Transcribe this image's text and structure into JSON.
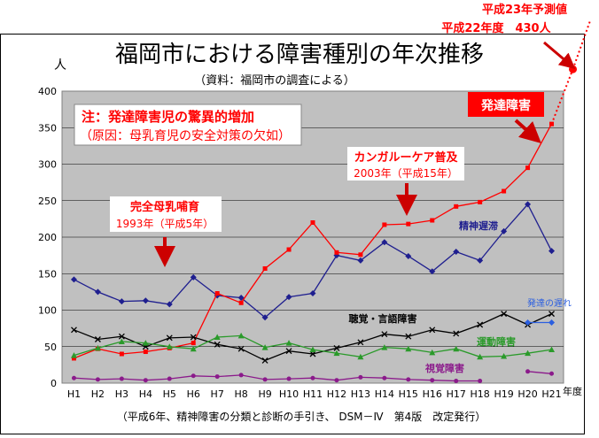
{
  "chart_data": {
    "type": "line",
    "title": "福岡市における障害種別の年次推移",
    "subtitle": "（資料：福岡市の調査による）",
    "ylabel": "人",
    "xlabel": "年度",
    "footnote": "（平成6年、精神障害の分類と診断の手引き、 DSM－Ⅳ　第4版　改定発行）",
    "ylim": [
      0,
      400
    ],
    "yticks": [
      "0",
      "50",
      "100",
      "150",
      "200",
      "250",
      "300",
      "350",
      "400"
    ],
    "categories": [
      "H1",
      "H2",
      "H3",
      "H4",
      "H5",
      "H6",
      "H7",
      "H8",
      "H9",
      "H10",
      "H11",
      "H12",
      "H13",
      "H14",
      "H15",
      "H16",
      "H17",
      "H18",
      "H19",
      "H20",
      "H21"
    ],
    "series": [
      {
        "name": "精神遅滞",
        "color": "#1f1f8f",
        "marker": "diamond",
        "values": [
          142,
          125,
          112,
          113,
          108,
          145,
          120,
          117,
          90,
          118,
          123,
          175,
          168,
          193,
          174,
          153,
          180,
          168,
          208,
          245,
          181
        ]
      },
      {
        "name": "発達障害",
        "color": "#ff0000",
        "marker": "square",
        "values": [
          34,
          47,
          40,
          43,
          48,
          55,
          123,
          110,
          157,
          183,
          220,
          179,
          176,
          217,
          218,
          223,
          242,
          248,
          263,
          295,
          355
        ]
      },
      {
        "name": "聴覚・言語障害",
        "color": "#000000",
        "marker": "x",
        "values": [
          73,
          60,
          64,
          50,
          62,
          63,
          53,
          47,
          31,
          44,
          40,
          48,
          56,
          67,
          64,
          73,
          68,
          80,
          95,
          80,
          95
        ]
      },
      {
        "name": "運動障害",
        "color": "#2a9a2a",
        "marker": "triangle",
        "values": [
          38,
          48,
          57,
          55,
          50,
          47,
          63,
          65,
          49,
          55,
          46,
          41,
          36,
          49,
          47,
          42,
          47,
          36,
          37,
          41,
          46
        ]
      },
      {
        "name": "視覚障害",
        "color": "#8b1a8b",
        "marker": "circle",
        "values": [
          7,
          5,
          6,
          4,
          6,
          10,
          9,
          11,
          5,
          6,
          7,
          4,
          8,
          7,
          5,
          4,
          3,
          3,
          null,
          16,
          13
        ]
      },
      {
        "name": "発達の遅れ",
        "color": "#2b5fe0",
        "marker": "diamond",
        "values": [
          null,
          null,
          null,
          null,
          null,
          null,
          null,
          null,
          null,
          null,
          null,
          null,
          null,
          null,
          null,
          null,
          null,
          null,
          null,
          83,
          83
        ]
      }
    ],
    "prediction": {
      "label": "平成23年予測値",
      "value": 430,
      "note": "平成22年度　430人"
    },
    "series_labels": {
      "mental": "精神遅滞",
      "devdis": "発達障害",
      "hearing": "聴覚・言語障害",
      "motor": "運動障害",
      "visual": "視覚障害",
      "delay": "発達の遅れ"
    },
    "annotations": {
      "note_line1": "注：発達障害児の驚異的増加",
      "note_line2": "（原因：母乳育児の安全対策の欠如）",
      "kangaroo_line1": "カンガルーケア普及",
      "kangaroo_line2": "2003年（平成15年）",
      "breastfeed_line1": "完全母乳哺育",
      "breastfeed_line2": "1993年（平成5年）"
    }
  },
  "colors": {
    "plot_bg": "#c0c0c0",
    "arrow": "#cc0000"
  }
}
